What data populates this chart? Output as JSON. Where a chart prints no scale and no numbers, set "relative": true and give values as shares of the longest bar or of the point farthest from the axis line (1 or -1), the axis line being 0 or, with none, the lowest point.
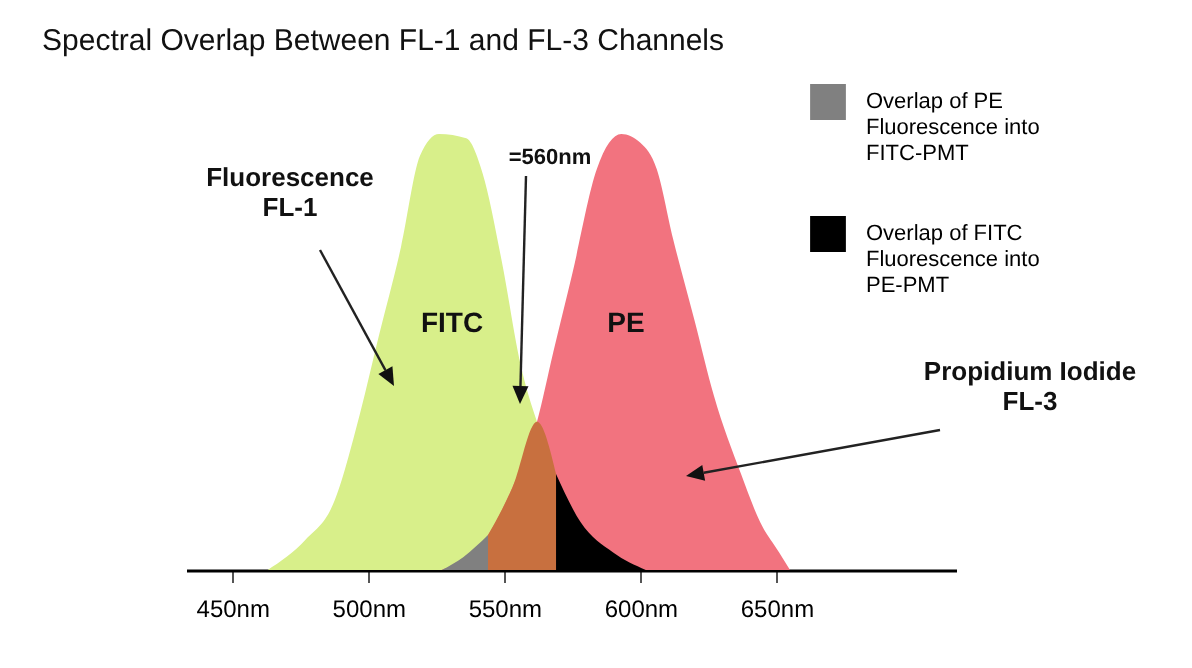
{
  "chart_data": {
    "type": "area",
    "title": "Spectral Overlap Between FL-1 and FL-3 Channels",
    "relative": true,
    "legend": "top right",
    "xlim": [
      433,
      716
    ],
    "xticks": [
      {
        "value": 450,
        "label": "450nm"
      },
      {
        "value": 500,
        "label": "500nm"
      },
      {
        "value": 550,
        "label": "550nm"
      },
      {
        "value": 600,
        "label": "600nm"
      },
      {
        "value": 650,
        "label": "650nm"
      }
    ],
    "series": [
      {
        "color": "#d8ef8a",
        "x": [
          463,
          477,
          487,
          497,
          504,
          512,
          519,
          526,
          536,
          542,
          549,
          556,
          562
        ],
        "values": [
          0,
          0.07,
          0.15,
          0.36,
          0.54,
          0.74,
          0.95,
          1,
          0.99,
          0.91,
          0.71,
          0.47,
          0.34
        ]
      },
      {
        "color": "#f2737f",
        "x": [
          527,
          544,
          553,
          562,
          568,
          575,
          584,
          593,
          600,
          606,
          612,
          620,
          627,
          637,
          644,
          651,
          655
        ],
        "values": [
          0,
          0.08,
          0.19,
          0.34,
          0.5,
          0.68,
          0.92,
          1,
          0.98,
          0.92,
          0.76,
          0.57,
          0.4,
          0.22,
          0.11,
          0.04,
          0
        ]
      },
      {
        "name": "Overlap of PE Fluorescence into FITC-PMT",
        "color": "#808080",
        "x": [
          527,
          535,
          544
        ],
        "values": [
          0,
          0.03,
          0.08
        ]
      },
      {
        "color": "#c8703f",
        "x": [
          544,
          553,
          562,
          569
        ],
        "values": [
          0.08,
          0.19,
          0.34,
          0.22
        ]
      },
      {
        "name": "Overlap of FITC Fluorescence into PE-PMT",
        "color": "#000000",
        "x": [
          569,
          578,
          590,
          602
        ],
        "values": [
          0.22,
          0.11,
          0.04,
          0
        ]
      }
    ],
    "annotations": [
      "Fluorescence FL-1",
      "=560nm",
      "FITC",
      "PE",
      "Propidium Iodide FL-3"
    ]
  }
}
